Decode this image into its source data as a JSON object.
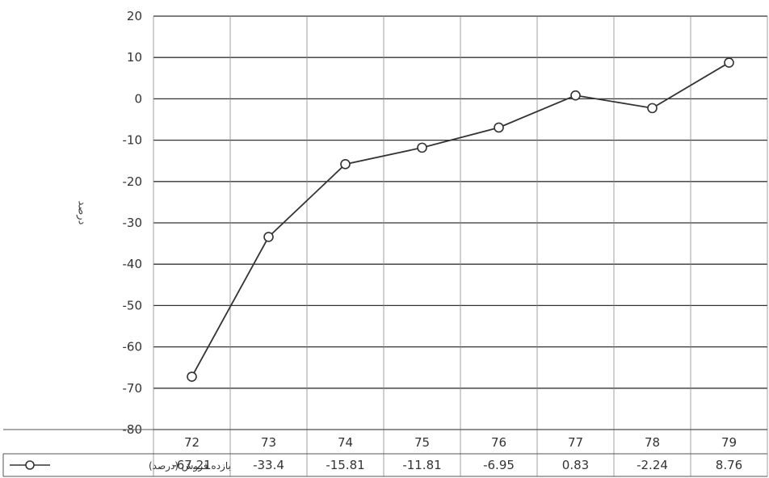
{
  "chart_data": {
    "type": "line",
    "categories": [
      "72",
      "73",
      "74",
      "75",
      "76",
      "77",
      "78",
      "79"
    ],
    "series": [
      {
        "name": "بازده فروش (درصد)",
        "values": [
          -67.21,
          -33.4,
          -15.81,
          -11.81,
          -6.95,
          0.83,
          -2.24,
          8.76
        ]
      }
    ],
    "value_labels": [
      "-67.21",
      "-33.4",
      "-15.81",
      "-11.81",
      "-6.95",
      "0.83",
      "-2.24",
      "8.76"
    ],
    "ylabel": "درصد",
    "ylim": [
      -80,
      20
    ],
    "yticks": [
      "20",
      "10",
      "0",
      "-10",
      "-20",
      "-30",
      "-40",
      "-50",
      "-60",
      "-70",
      "-80"
    ],
    "grid": true,
    "legend": "data-table-left",
    "colors": {
      "line": "#333333",
      "grid": "#333333",
      "marker_fill": "#ffffff"
    }
  }
}
